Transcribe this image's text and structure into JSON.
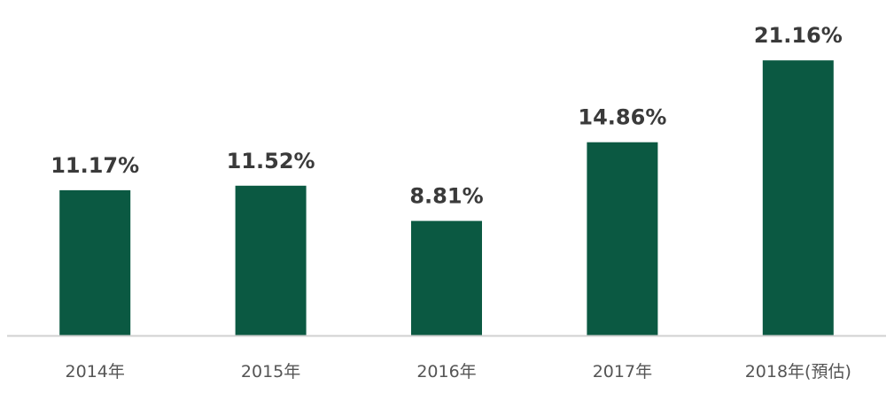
{
  "chart_data": {
    "type": "bar",
    "categories": [
      "2014年",
      "2015年",
      "2016年",
      "2017年",
      "2018年(預估)"
    ],
    "values": [
      11.17,
      11.52,
      8.81,
      14.86,
      21.16
    ],
    "value_labels": [
      "11.17%",
      "11.52%",
      "8.81%",
      "14.86%",
      "21.16%"
    ],
    "title": "",
    "xlabel": "",
    "ylabel": "",
    "ylim": [
      0,
      22.4
    ],
    "grid": false,
    "legend": "none",
    "colors": {
      "bar": "#0b5942",
      "axis": "#d0d0d0",
      "value_text": "#3a3a3a",
      "tick_text": "#555555"
    }
  }
}
